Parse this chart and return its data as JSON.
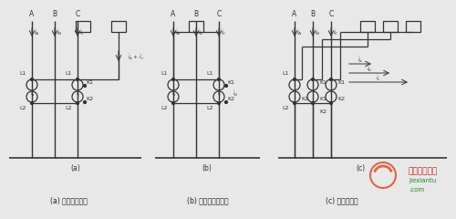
{
  "background_color": "#e8e8e8",
  "caption_a": "(a) 两相星形接线",
  "caption_b": "(b) 两相电流差接线",
  "caption_c": "(c) 三相接线图",
  "watermark_text": "电工技术之家",
  "watermark_sub": "jiexiantu",
  "line_color": "#333333",
  "white_color": "#e8e8e8"
}
